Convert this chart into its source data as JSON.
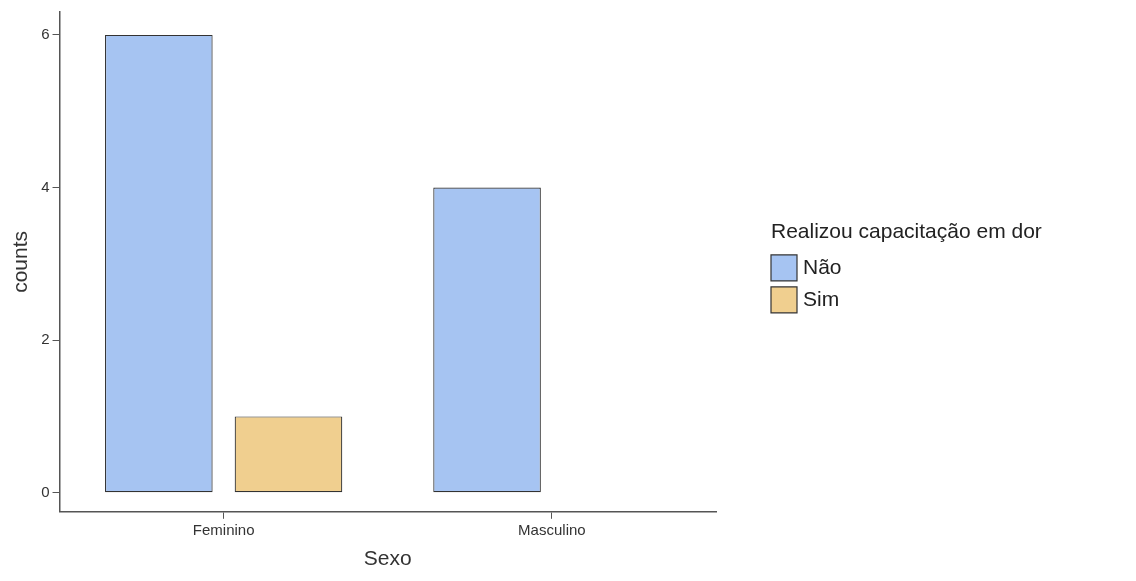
{
  "chart_data": {
    "type": "bar",
    "xlabel": "Sexo",
    "ylabel": "counts",
    "legend_title": "Realizou capacitação em dor",
    "legend": "right",
    "categories": [
      "Feminino",
      "Masculino"
    ],
    "series": [
      {
        "name": "Não",
        "color": "#a6c4f2",
        "values": [
          6,
          4
        ]
      },
      {
        "name": "Sim",
        "color": "#f0cf8f",
        "values": [
          1,
          0
        ]
      }
    ],
    "ylim": [
      -0.25,
      6.3
    ],
    "yticks": [
      0,
      2,
      4,
      6
    ]
  }
}
